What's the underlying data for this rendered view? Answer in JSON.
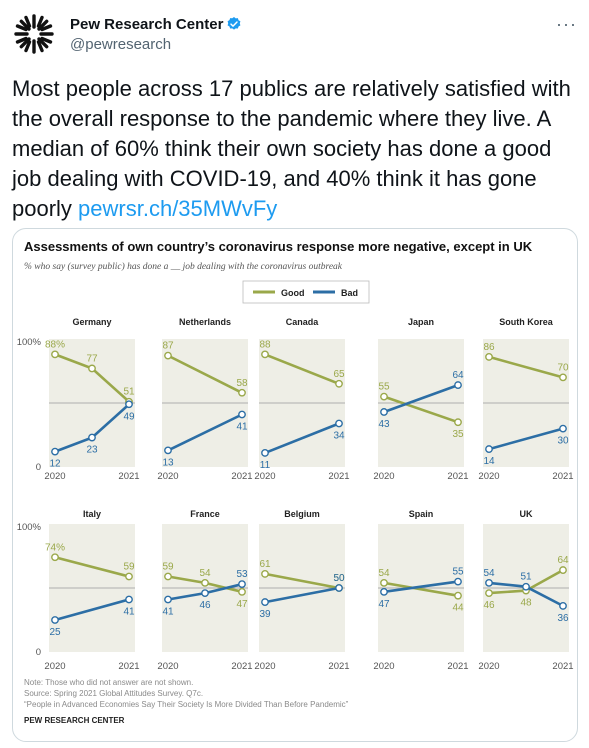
{
  "tweet": {
    "author_name": "Pew Research Center",
    "handle": "@pewresearch",
    "more_label": "···",
    "text": "Most people across 17 publics are relatively satisfied with the overall response to the pandemic where they live. A median of 60% think their own society has done a good job dealing with COVID-19, and 40% think it has gone poorly ",
    "link_text": "pewrsr.ch/35MWvFy"
  },
  "colors": {
    "good": "#9aa84a",
    "bad": "#2c6ea5",
    "panel_bg": "#eeeee6",
    "verified": "#1d9bf0"
  },
  "icons": {
    "avatar": "pew-logo-icon",
    "verified": "verified-badge-icon",
    "more": "more-options-icon"
  },
  "chart_data": {
    "type": "line",
    "title": "Assessments of own country’s coronavirus response more negative, except in UK",
    "subtitle": "% who say (survey public) has done a __ job dealing with the coronavirus outbreak",
    "legend": {
      "good": "Good",
      "bad": "Bad",
      "placement": "top-center"
    },
    "y_axis": {
      "top_label": "100%",
      "bottom_label": "0",
      "range": [
        0,
        100
      ],
      "midline": 50
    },
    "x_axis": {
      "start_label": "2020",
      "end_label": "2021"
    },
    "panels": [
      {
        "country": "Germany",
        "good": [
          {
            "x": 0,
            "y": 88,
            "label": "88%"
          },
          {
            "x": 0.5,
            "y": 77,
            "label": "77"
          },
          {
            "x": 1,
            "y": 51,
            "label": "51"
          }
        ],
        "bad": [
          {
            "x": 0,
            "y": 12,
            "label": "12"
          },
          {
            "x": 0.5,
            "y": 23,
            "label": "23"
          },
          {
            "x": 1,
            "y": 49,
            "label": "49"
          }
        ]
      },
      {
        "country": "Netherlands",
        "good": [
          {
            "x": 0,
            "y": 87,
            "label": "87"
          },
          {
            "x": 1,
            "y": 58,
            "label": "58"
          }
        ],
        "bad": [
          {
            "x": 0,
            "y": 13,
            "label": "13"
          },
          {
            "x": 1,
            "y": 41,
            "label": "41"
          }
        ]
      },
      {
        "country": "Canada",
        "good": [
          {
            "x": 0,
            "y": 88,
            "label": "88"
          },
          {
            "x": 1,
            "y": 65,
            "label": "65"
          }
        ],
        "bad": [
          {
            "x": 0,
            "y": 11,
            "label": "11"
          },
          {
            "x": 1,
            "y": 34,
            "label": "34"
          }
        ]
      },
      {
        "country": "Japan",
        "good": [
          {
            "x": 0,
            "y": 55,
            "label": "55"
          },
          {
            "x": 1,
            "y": 35,
            "label": "35"
          }
        ],
        "bad": [
          {
            "x": 0,
            "y": 43,
            "label": "43"
          },
          {
            "x": 1,
            "y": 64,
            "label": "64"
          }
        ]
      },
      {
        "country": "South Korea",
        "good": [
          {
            "x": 0,
            "y": 86,
            "label": "86"
          },
          {
            "x": 1,
            "y": 70,
            "label": "70"
          }
        ],
        "bad": [
          {
            "x": 0,
            "y": 14,
            "label": "14"
          },
          {
            "x": 1,
            "y": 30,
            "label": "30"
          }
        ]
      },
      {
        "country": "Italy",
        "good": [
          {
            "x": 0,
            "y": 74,
            "label": "74%"
          },
          {
            "x": 1,
            "y": 59,
            "label": "59"
          }
        ],
        "bad": [
          {
            "x": 0,
            "y": 25,
            "label": "25"
          },
          {
            "x": 1,
            "y": 41,
            "label": "41"
          }
        ]
      },
      {
        "country": "France",
        "good": [
          {
            "x": 0,
            "y": 59,
            "label": "59"
          },
          {
            "x": 0.5,
            "y": 54,
            "label": "54"
          },
          {
            "x": 1,
            "y": 47,
            "label": "47"
          }
        ],
        "bad": [
          {
            "x": 0,
            "y": 41,
            "label": "41"
          },
          {
            "x": 0.5,
            "y": 46,
            "label": "46"
          },
          {
            "x": 1,
            "y": 53,
            "label": "53"
          }
        ]
      },
      {
        "country": "Belgium",
        "good": [
          {
            "x": 0,
            "y": 61,
            "label": "61"
          },
          {
            "x": 1,
            "y": 50,
            "label": "50"
          }
        ],
        "bad": [
          {
            "x": 0,
            "y": 39,
            "label": "39"
          },
          {
            "x": 1,
            "y": 50,
            "label": "50"
          }
        ]
      },
      {
        "country": "Spain",
        "good": [
          {
            "x": 0,
            "y": 54,
            "label": "54"
          },
          {
            "x": 1,
            "y": 44,
            "label": "44"
          }
        ],
        "bad": [
          {
            "x": 0,
            "y": 47,
            "label": "47"
          },
          {
            "x": 1,
            "y": 55,
            "label": "55"
          }
        ]
      },
      {
        "country": "UK",
        "good": [
          {
            "x": 0,
            "y": 46,
            "label": "46"
          },
          {
            "x": 0.5,
            "y": 48,
            "label": "48"
          },
          {
            "x": 1,
            "y": 64,
            "label": "64"
          }
        ],
        "bad": [
          {
            "x": 0,
            "y": 54,
            "label": "54"
          },
          {
            "x": 0.5,
            "y": 51,
            "label": "51"
          },
          {
            "x": 1,
            "y": 36,
            "label": "36"
          }
        ]
      }
    ],
    "note": "Note: Those who did not answer are not shown.",
    "source": "Source: Spring 2021 Global Attitudes Survey. Q7c.",
    "report": "“People in Advanced Economies Say Their Society Is More Divided Than Before Pandemic”",
    "org": "PEW RESEARCH CENTER"
  }
}
